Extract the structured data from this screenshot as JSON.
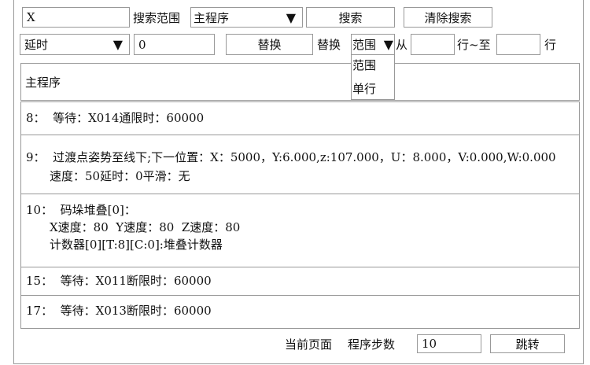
{
  "search": {
    "value": "X",
    "scope_label": "搜索范围",
    "scope_value": "主程序",
    "search_button": "搜索",
    "clear_button": "清除搜索"
  },
  "replace": {
    "field_value": "延时",
    "value": "0",
    "replace_button": "替换",
    "mode_label": "替换",
    "mode_value": "范围",
    "mode_options": [
      "范围",
      "单行"
    ],
    "from_label": "从",
    "from_value": "",
    "to_label": "行~至",
    "to_value": "",
    "end_label": "行"
  },
  "program_title": "主程序",
  "rows": [
    {
      "num": "8：",
      "lines": [
        "等待：X014通限时：60000"
      ]
    },
    {
      "num": "9：",
      "lines": [
        "过渡点姿势至线下;下一位置：X：5000，Y:6.000,z:107.000，U：8.000，V:0.000,W:0.000",
        "速度：50延时：0平滑：无"
      ]
    },
    {
      "num": "10：",
      "lines": [
        "码垛堆叠[0]：",
        "X速度：80  Y速度：80  Z速度：80",
        "计数器[0][T:8][C:0]:堆叠计数器"
      ]
    },
    {
      "num": "15：",
      "lines": [
        "等待：X011断限时：60000"
      ]
    },
    {
      "num": "17：",
      "lines": [
        "等待：X013断限时：60000"
      ]
    }
  ],
  "footer": {
    "current_page_label": "当前页面",
    "steps_label": "程序步数",
    "steps_value": "10",
    "jump_button": "跳转"
  }
}
